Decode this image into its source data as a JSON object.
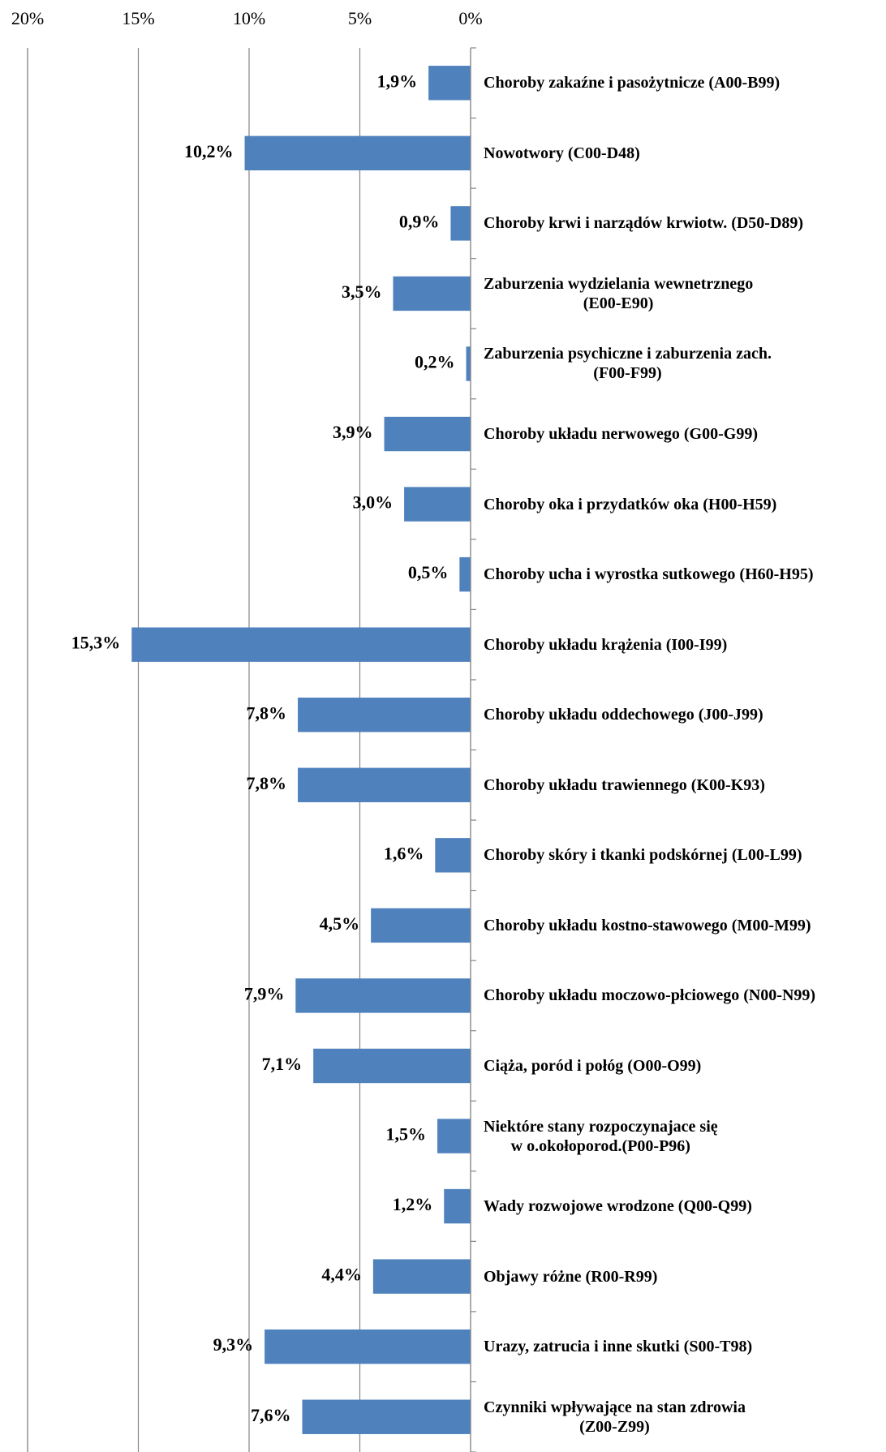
{
  "chart_data": {
    "type": "bar",
    "orientation": "horizontal",
    "color": "#4f81bd",
    "grid": true,
    "xlim": [
      20,
      0
    ],
    "xticks": [
      {
        "value": 20,
        "label": "20%"
      },
      {
        "value": 15,
        "label": "15%"
      },
      {
        "value": 10,
        "label": "10%"
      },
      {
        "value": 5,
        "label": "5%"
      },
      {
        "value": 0,
        "label": "0%"
      }
    ],
    "categories": [
      "Choroby zakaźne i pasożytnicze (A00-B99)",
      "Nowotwory (C00-D48)",
      "Choroby krwi i narządów krwiotw. (D50-D89)",
      "Zaburzenia wydzielania wewnetrznego\n(E00-E90)",
      "Zaburzenia psychiczne i zaburzenia zach.\n(F00-F99)",
      "Choroby układu nerwowego (G00-G99)",
      "Choroby oka i przydatków oka (H00-H59)",
      "Choroby ucha i wyrostka sutkowego (H60-H95)",
      "Choroby układu krążenia (I00-I99)",
      "Choroby układu oddechowego (J00-J99)",
      "Choroby układu trawiennego (K00-K93)",
      "Choroby skóry i tkanki podskórnej (L00-L99)",
      "Choroby układu kostno-stawowego (M00-M99)",
      "Choroby układu moczowo-płciowego (N00-N99)",
      "Ciąża, poród i połóg (O00-O99)",
      "Niektóre stany rozpoczynajace się\nw o.okołoporod.(P00-P96)",
      "Wady rozwojowe wrodzone (Q00-Q99)",
      "Objawy różne (R00-R99)",
      "Urazy, zatrucia i inne skutki (S00-T98)",
      "Czynniki wpływające na stan zdrowia\n(Z00-Z99)"
    ],
    "values": [
      1.9,
      10.2,
      0.9,
      3.5,
      0.2,
      3.9,
      3.0,
      0.5,
      15.3,
      7.8,
      7.8,
      1.6,
      4.5,
      7.9,
      7.1,
      1.5,
      1.2,
      4.4,
      9.3,
      7.6
    ],
    "value_labels": [
      "1,9%",
      "10,2%",
      "0,9%",
      "3,5%",
      "0,2%",
      "3,9%",
      "3,0%",
      "0,5%",
      "15,3%",
      "7,8%",
      "7,8%",
      "1,6%",
      "4,5%",
      "7,9%",
      "7,1%",
      "1,5%",
      "1,2%",
      "4,4%",
      "9,3%",
      "7,6%"
    ]
  }
}
